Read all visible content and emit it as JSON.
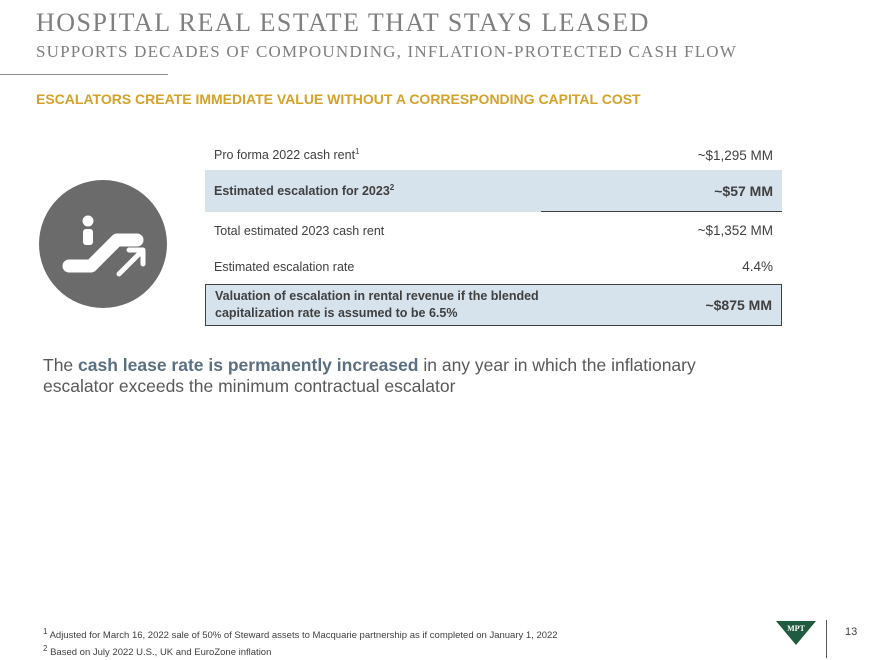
{
  "header": {
    "title": "HOSPITAL REAL ESTATE THAT STAYS LEASED",
    "subtitle": "SUPPORTS DECADES OF COMPOUNDING, INFLATION-PROTECTED CASH FLOW"
  },
  "section": {
    "heading": "ESCALATORS CREATE IMMEDIATE VALUE WITHOUT A CORRESPONDING CAPITAL COST"
  },
  "icon": {
    "name": "escalator-icon",
    "circle_color": "#6b6b6b"
  },
  "table": {
    "rows": [
      {
        "label": "Pro forma 2022 cash rent",
        "label_sup": "1",
        "value": "~$1,295 MM"
      },
      {
        "label": "Estimated escalation for 2023",
        "label_sup": "2",
        "value": "~$57 MM"
      },
      {
        "label": "Total estimated 2023 cash rent",
        "value": "~$1,352 MM"
      },
      {
        "label": "Estimated escalation rate",
        "value": "4.4%"
      },
      {
        "label": "Valuation of escalation in rental revenue if the blended capitalization rate is assumed to be 6.5%",
        "value": "~$875 MM"
      }
    ]
  },
  "statement": {
    "pre": "The ",
    "emphasis": "cash lease rate is permanently increased",
    "post": " in any year in which the inflationary escalator exceeds the minimum contractual escalator"
  },
  "footnotes": {
    "note1_marker": "1",
    "note1": "Adjusted for March 16, 2022 sale of 50% of Steward assets to Macquarie partnership as if completed on January 1, 2022",
    "note2_marker": "2",
    "note2": "Based on July 2022 U.S., UK and EuroZone inflation"
  },
  "footer": {
    "page_number": "13",
    "logo_text": "MPT"
  },
  "colors": {
    "accent": "#d4a12a",
    "highlight_row": "#d6e2ec",
    "emphasis_text": "#5b6f82",
    "logo_green": "#1e5b3f"
  }
}
